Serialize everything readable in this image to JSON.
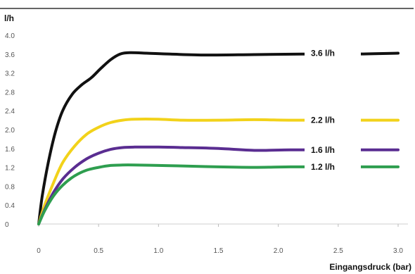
{
  "chart_data": {
    "type": "line",
    "ylabel": "l/h",
    "xlabel": "Eingangsdruck (bar)",
    "xlim": [
      0,
      3.0
    ],
    "ylim": [
      0,
      4.0
    ],
    "x_ticks": [
      "0",
      "0.5",
      "1.0",
      "1.5",
      "2.0",
      "2.5",
      "3.0"
    ],
    "y_ticks": [
      "0",
      "0.4",
      "0.8",
      "1.2",
      "1.6",
      "2.0",
      "2.4",
      "2.8",
      "3.2",
      "3.6",
      "4.0"
    ],
    "grid": false,
    "series": [
      {
        "name": "3.6 l/h",
        "color": "#111111",
        "x": [
          0,
          0.03,
          0.08,
          0.14,
          0.2,
          0.28,
          0.36,
          0.44,
          0.52,
          0.6,
          0.68,
          0.76,
          0.9,
          1.1,
          1.4,
          1.8,
          2.2,
          2.6,
          3.0
        ],
        "y": [
          0,
          0.6,
          1.3,
          1.95,
          2.4,
          2.75,
          2.95,
          3.1,
          3.3,
          3.48,
          3.6,
          3.63,
          3.62,
          3.6,
          3.58,
          3.59,
          3.6,
          3.6,
          3.62
        ]
      },
      {
        "name": "2.2 l/h",
        "color": "#f2d21a",
        "x": [
          0,
          0.05,
          0.12,
          0.2,
          0.3,
          0.4,
          0.5,
          0.6,
          0.7,
          0.8,
          1.0,
          1.2,
          1.5,
          1.8,
          2.1,
          2.4,
          2.7,
          3.0
        ],
        "y": [
          0,
          0.4,
          0.85,
          1.3,
          1.65,
          1.9,
          2.05,
          2.15,
          2.2,
          2.22,
          2.22,
          2.2,
          2.2,
          2.21,
          2.2,
          2.2,
          2.2,
          2.2
        ]
      },
      {
        "name": "1.6 l/h",
        "color": "#5a2d91",
        "x": [
          0,
          0.05,
          0.12,
          0.2,
          0.3,
          0.4,
          0.5,
          0.6,
          0.7,
          0.8,
          1.0,
          1.2,
          1.5,
          1.8,
          2.1,
          2.4,
          2.7,
          3.0
        ],
        "y": [
          0,
          0.3,
          0.65,
          0.95,
          1.2,
          1.38,
          1.5,
          1.58,
          1.62,
          1.63,
          1.63,
          1.62,
          1.6,
          1.56,
          1.57,
          1.57,
          1.57,
          1.57
        ]
      },
      {
        "name": "1.2 l/h",
        "color": "#2e9e4f",
        "x": [
          0,
          0.05,
          0.12,
          0.2,
          0.3,
          0.4,
          0.5,
          0.6,
          0.7,
          0.8,
          1.0,
          1.2,
          1.5,
          1.8,
          2.1,
          2.4,
          2.7,
          3.0
        ],
        "y": [
          0,
          0.28,
          0.58,
          0.82,
          1.02,
          1.14,
          1.2,
          1.24,
          1.25,
          1.25,
          1.24,
          1.23,
          1.21,
          1.2,
          1.21,
          1.21,
          1.21,
          1.21
        ]
      }
    ]
  }
}
